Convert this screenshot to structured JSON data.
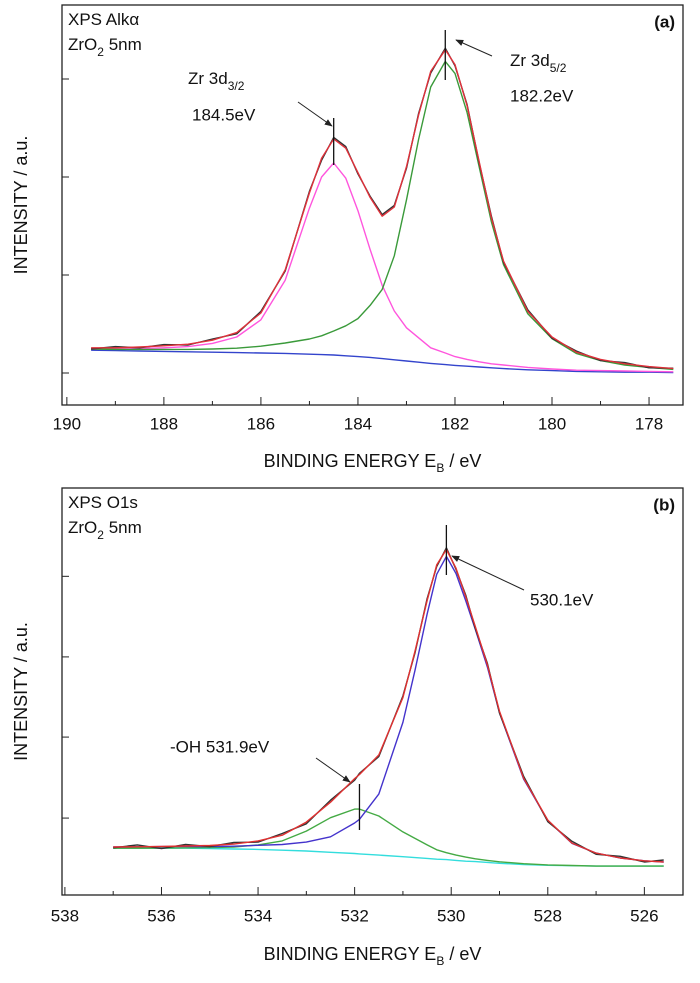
{
  "chart_data": [
    {
      "type": "line",
      "panel": "(a)",
      "corner_text": [
        {
          "text": "XPS Alkα"
        },
        {
          "text": "ZrO",
          "sub": "2",
          "tail": " 5nm"
        }
      ],
      "xlabel": {
        "text": "BINDING ENERGY E",
        "sub": "B",
        "tail": " / eV"
      },
      "ylabel": "INTENSITY / a.u.",
      "xlim": [
        190.1,
        177.3
      ],
      "xticks": [
        190,
        188,
        186,
        184,
        182,
        180,
        178
      ],
      "xminorticks": [
        189,
        187,
        185,
        183,
        181,
        179
      ],
      "ylim": [
        0,
        100
      ],
      "yticks": [
        8,
        32.5,
        57,
        81.5
      ],
      "ytick_labels": false,
      "x": [
        189.5,
        189,
        188.5,
        188,
        187.5,
        187,
        186.5,
        186,
        185.5,
        185,
        184.75,
        184.5,
        184.25,
        184,
        183.75,
        183.5,
        183.25,
        183,
        182.75,
        182.5,
        182.2,
        182,
        181.75,
        181.5,
        181.25,
        181,
        180.5,
        180,
        179.5,
        179,
        178.5,
        178,
        177.5
      ],
      "series": [
        {
          "color": "#3344cc",
          "values": [
            13.7,
            13.6,
            13.5,
            13.4,
            13.3,
            13.2,
            13.1,
            13.0,
            12.9,
            12.7,
            12.6,
            12.5,
            12.3,
            12.1,
            11.9,
            11.6,
            11.3,
            11.0,
            10.7,
            10.4,
            10.1,
            9.9,
            9.7,
            9.5,
            9.3,
            9.1,
            8.8,
            8.6,
            8.4,
            8.3,
            8.2,
            8.2,
            8.1
          ]
        },
        {
          "color": "#ff55dd",
          "values": [
            14.0,
            14.0,
            14.1,
            14.3,
            14.6,
            15.4,
            17.0,
            21.3,
            31.2,
            49.2,
            57.0,
            60.5,
            56.7,
            48.6,
            38.9,
            29.9,
            23.5,
            19.3,
            16.8,
            14.3,
            13.0,
            12.1,
            11.4,
            10.8,
            10.3,
            10.0,
            9.4,
            9.0,
            8.7,
            8.6,
            8.5,
            8.4,
            8.3
          ]
        },
        {
          "color": "#3a9a3a",
          "values": [
            14.0,
            13.9,
            13.9,
            13.9,
            13.9,
            14.0,
            14.2,
            14.7,
            15.5,
            16.5,
            17.3,
            18.5,
            19.8,
            21.6,
            24.9,
            28.9,
            37.3,
            51.3,
            66.4,
            79.5,
            85.9,
            82.9,
            73.1,
            59.5,
            45.8,
            35.1,
            22.8,
            16.6,
            12.9,
            11.1,
            10.0,
            9.4,
            8.9
          ]
        },
        {
          "color": "#333333",
          "values": [
            14.0,
            14.6,
            14.3,
            15.1,
            15.0,
            16.5,
            17.8,
            23.4,
            33.5,
            53.4,
            61.2,
            66.9,
            64.6,
            57.8,
            52.2,
            47.6,
            49.9,
            59.2,
            72.9,
            83.0,
            89.2,
            84.8,
            75.1,
            60.5,
            47.2,
            35.7,
            23.8,
            16.7,
            13.5,
            11.1,
            10.6,
            9.3,
            9.2
          ]
        },
        {
          "color": "#e0303a",
          "values": [
            14.3,
            14.3,
            14.5,
            14.8,
            15.2,
            16.2,
            18.1,
            23.0,
            33.8,
            53.0,
            61.7,
            66.5,
            64.2,
            58.1,
            51.9,
            47.2,
            49.5,
            59.6,
            72.5,
            83.4,
            88.8,
            85.1,
            74.8,
            60.8,
            46.8,
            36.0,
            23.4,
            17.0,
            13.2,
            11.4,
            10.3,
            9.6,
            9.1
          ]
        }
      ],
      "annotations": [
        {
          "text": "Zr 3d",
          "sub": "3/2",
          "label": "184.5eV",
          "x": 184.5
        },
        {
          "text": "Zr 3d",
          "sub": "5/2",
          "label": "182.2eV",
          "x": 182.2
        }
      ]
    },
    {
      "type": "line",
      "panel": "(b)",
      "corner_text": [
        {
          "text": "XPS O1s"
        },
        {
          "text": "ZrO",
          "sub": "2",
          "tail": " 5nm"
        }
      ],
      "xlabel": {
        "text": "BINDING ENERGY E",
        "sub": "B",
        "tail": " / eV"
      },
      "ylabel": "INTENSITY / a.u.",
      "xlim": [
        538.06,
        525.2
      ],
      "xticks": [
        538,
        536,
        534,
        532,
        530,
        528,
        526
      ],
      "xminorticks": [
        537,
        535,
        533,
        531,
        529,
        527
      ],
      "ylim": [
        0,
        100
      ],
      "yticks": [
        18.9,
        38.8,
        58.5,
        78.3
      ],
      "ytick_labels": false,
      "x": [
        537,
        536.5,
        536,
        535.5,
        535,
        534.5,
        534,
        533.5,
        533,
        532.5,
        532,
        531.9,
        531.5,
        531,
        530.75,
        530.5,
        530.3,
        530.1,
        529.9,
        529.7,
        529.5,
        529.25,
        529,
        528.5,
        528,
        527.5,
        527,
        526.5,
        526,
        525.6
      ],
      "series": [
        {
          "color": "#33dddd",
          "values": [
            11.5,
            11.5,
            11.5,
            11.5,
            11.4,
            11.3,
            11.2,
            11.0,
            10.8,
            10.5,
            10.2,
            10.1,
            9.8,
            9.4,
            9.2,
            9.0,
            8.8,
            8.7,
            8.5,
            8.3,
            8.2,
            8.0,
            7.8,
            7.5,
            7.3,
            7.2,
            7.1,
            7.1,
            7.1,
            7.1
          ]
        },
        {
          "color": "#44aa44",
          "values": [
            11.5,
            11.5,
            11.55,
            11.6,
            11.65,
            11.8,
            12.3,
            13.3,
            15.7,
            19.0,
            21.1,
            21.1,
            19.4,
            15.5,
            13.9,
            12.3,
            11.1,
            10.4,
            9.8,
            9.3,
            8.9,
            8.5,
            8.15,
            7.7,
            7.4,
            7.25,
            7.1,
            7.1,
            7.1,
            7.1
          ]
        },
        {
          "color": "#4433cc",
          "values": [
            11.8,
            11.85,
            11.9,
            11.95,
            11.9,
            12.0,
            12.2,
            12.4,
            13.0,
            14.3,
            17.7,
            18.6,
            24.8,
            42.4,
            55.2,
            69.0,
            78.8,
            83.2,
            79.0,
            72.3,
            65.2,
            56.0,
            44.8,
            28.5,
            18.3,
            12.7,
            10.3,
            9.1,
            8.4,
            8.1
          ]
        },
        {
          "color": "#333333",
          "values": [
            11.6,
            12.3,
            11.4,
            12.4,
            11.9,
            12.9,
            13.0,
            15.1,
            17.5,
            23.3,
            28.2,
            29.9,
            34.0,
            48.9,
            59.5,
            72.8,
            80.7,
            85.3,
            80.0,
            73.7,
            65.4,
            56.9,
            44.7,
            29.2,
            18.0,
            13.2,
            10.0,
            9.5,
            8.1,
            8.6
          ]
        },
        {
          "color": "#e03030",
          "values": [
            11.8,
            11.85,
            11.95,
            12.05,
            12.15,
            12.5,
            13.3,
            14.7,
            17.9,
            22.8,
            28.6,
            29.6,
            34.4,
            48.5,
            59.9,
            72.3,
            81.1,
            84.9,
            80.3,
            73.3,
            65.9,
            56.5,
            45.15,
            28.7,
            18.4,
            12.75,
            10.3,
            9.1,
            8.4,
            8.1
          ]
        }
      ],
      "annotations": [
        {
          "label": "530.1eV",
          "x": 530.1
        },
        {
          "label": "-OH 531.9eV",
          "x": 531.9
        }
      ]
    }
  ]
}
